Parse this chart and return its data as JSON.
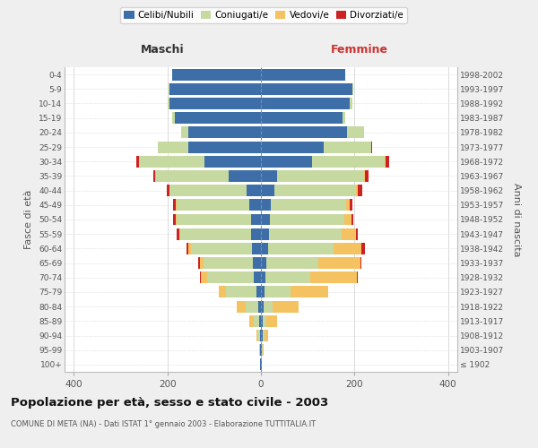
{
  "age_groups": [
    "100+",
    "95-99",
    "90-94",
    "85-89",
    "80-84",
    "75-79",
    "70-74",
    "65-69",
    "60-64",
    "55-59",
    "50-54",
    "45-49",
    "40-44",
    "35-39",
    "30-34",
    "25-29",
    "20-24",
    "15-19",
    "10-14",
    "5-9",
    "0-4"
  ],
  "birth_years": [
    "≤ 1902",
    "1903-1907",
    "1908-1912",
    "1913-1917",
    "1918-1922",
    "1923-1927",
    "1928-1932",
    "1933-1937",
    "1938-1942",
    "1943-1947",
    "1948-1952",
    "1953-1957",
    "1958-1962",
    "1963-1967",
    "1968-1972",
    "1973-1977",
    "1978-1982",
    "1983-1987",
    "1988-1992",
    "1993-1997",
    "1998-2002"
  ],
  "males": {
    "celibi": [
      1,
      1,
      2,
      4,
      5,
      10,
      16,
      18,
      20,
      22,
      22,
      25,
      30,
      70,
      120,
      155,
      155,
      185,
      195,
      195,
      190
    ],
    "coniugati": [
      0,
      2,
      5,
      12,
      28,
      65,
      100,
      105,
      130,
      150,
      158,
      155,
      165,
      155,
      140,
      65,
      15,
      5,
      5,
      2,
      0
    ],
    "vedovi": [
      0,
      1,
      3,
      8,
      18,
      15,
      12,
      8,
      5,
      3,
      2,
      2,
      1,
      1,
      1,
      1,
      0,
      0,
      0,
      0,
      0
    ],
    "divorziati": [
      0,
      0,
      0,
      0,
      0,
      0,
      2,
      3,
      5,
      5,
      5,
      5,
      5,
      5,
      5,
      0,
      0,
      0,
      0,
      0,
      0
    ]
  },
  "females": {
    "nubili": [
      1,
      2,
      3,
      4,
      5,
      8,
      10,
      12,
      15,
      18,
      20,
      22,
      28,
      35,
      110,
      135,
      185,
      175,
      190,
      195,
      180
    ],
    "coniugate": [
      0,
      1,
      4,
      8,
      20,
      55,
      95,
      110,
      140,
      155,
      158,
      160,
      175,
      185,
      155,
      100,
      35,
      5,
      5,
      2,
      0
    ],
    "vedove": [
      0,
      2,
      8,
      22,
      55,
      80,
      100,
      90,
      60,
      30,
      15,
      8,
      5,
      3,
      2,
      1,
      0,
      0,
      0,
      0,
      0
    ],
    "divorziate": [
      0,
      0,
      1,
      1,
      1,
      1,
      2,
      3,
      8,
      5,
      5,
      5,
      8,
      8,
      8,
      1,
      0,
      0,
      0,
      0,
      0
    ]
  },
  "colors": {
    "celibi": "#3d6ea8",
    "coniugati": "#c5d9a0",
    "vedovi": "#f5c262",
    "divorziati": "#cc2222"
  },
  "legend_labels": [
    "Celibi/Nubili",
    "Coniugati/e",
    "Vedovi/e",
    "Divorziati/e"
  ],
  "title": "Popolazione per età, sesso e stato civile - 2003",
  "subtitle": "COMUNE DI META (NA) - Dati ISTAT 1° gennaio 2003 - Elaborazione TUTTITALIA.IT",
  "ylabel_left": "Fasce di età",
  "ylabel_right": "Anni di nascita",
  "xlabel_maschi": "Maschi",
  "xlabel_femmine": "Femmine",
  "xlim": 420,
  "bg_color": "#efefef",
  "plot_bg": "#ffffff"
}
